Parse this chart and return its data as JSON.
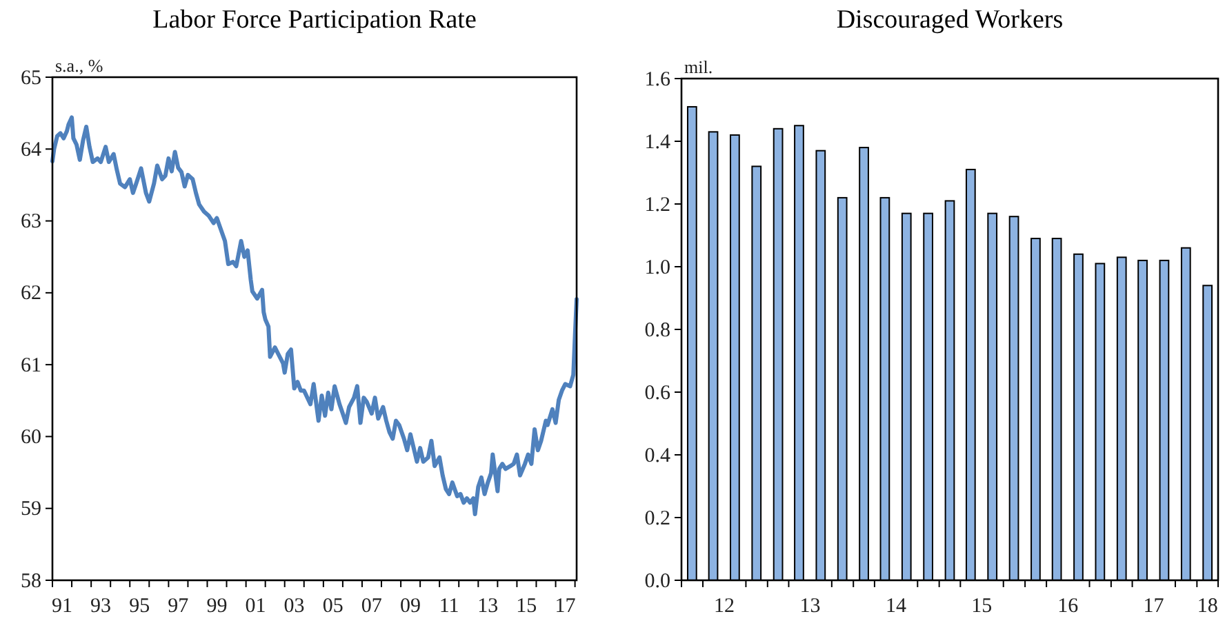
{
  "chart_data": [
    {
      "type": "line",
      "title": "Labor Force Participation  Rate",
      "ylabel": "s.a., %",
      "xlim": [
        "1991-01",
        "2018-02"
      ],
      "ylim": [
        58,
        65
      ],
      "yticks": [
        58,
        59,
        60,
        61,
        62,
        63,
        64,
        65
      ],
      "xticks": [
        {
          "value": "1991-01",
          "label": null
        },
        {
          "value": "1991-07",
          "label": "91"
        },
        {
          "value": "1992-01",
          "label": null
        },
        {
          "value": "1993-01",
          "label": null
        },
        {
          "value": "1993-07",
          "label": "93"
        },
        {
          "value": "1994-01",
          "label": null
        },
        {
          "value": "1995-01",
          "label": null
        },
        {
          "value": "1995-07",
          "label": "95"
        },
        {
          "value": "1996-01",
          "label": null
        },
        {
          "value": "1997-01",
          "label": null
        },
        {
          "value": "1997-07",
          "label": "97"
        },
        {
          "value": "1998-01",
          "label": null
        },
        {
          "value": "1999-01",
          "label": null
        },
        {
          "value": "1999-07",
          "label": "99"
        },
        {
          "value": "2000-01",
          "label": null
        },
        {
          "value": "2001-01",
          "label": null
        },
        {
          "value": "2001-07",
          "label": "01"
        },
        {
          "value": "2002-01",
          "label": null
        },
        {
          "value": "2003-01",
          "label": null
        },
        {
          "value": "2003-07",
          "label": "03"
        },
        {
          "value": "2004-01",
          "label": null
        },
        {
          "value": "2005-01",
          "label": null
        },
        {
          "value": "2005-07",
          "label": "05"
        },
        {
          "value": "2006-01",
          "label": null
        },
        {
          "value": "2007-01",
          "label": null
        },
        {
          "value": "2007-07",
          "label": "07"
        },
        {
          "value": "2008-01",
          "label": null
        },
        {
          "value": "2009-01",
          "label": null
        },
        {
          "value": "2009-07",
          "label": "09"
        },
        {
          "value": "2010-01",
          "label": null
        },
        {
          "value": "2011-01",
          "label": null
        },
        {
          "value": "2011-07",
          "label": "11"
        },
        {
          "value": "2012-01",
          "label": null
        },
        {
          "value": "2013-01",
          "label": null
        },
        {
          "value": "2013-07",
          "label": "13"
        },
        {
          "value": "2014-01",
          "label": null
        },
        {
          "value": "2015-01",
          "label": null
        },
        {
          "value": "2015-07",
          "label": "15"
        },
        {
          "value": "2016-01",
          "label": null
        },
        {
          "value": "2017-01",
          "label": null
        },
        {
          "value": "2017-07",
          "label": "17"
        },
        {
          "value": "2018-01",
          "label": null
        }
      ],
      "series": [
        {
          "color": "#4f81bd",
          "x": [
            "1991-01",
            "1991-02",
            "1991-04",
            "1991-06",
            "1991-08",
            "1991-10",
            "1991-11",
            "1992-01",
            "1992-02",
            "1992-04",
            "1992-06",
            "1992-08",
            "1992-10",
            "1992-12",
            "1993-02",
            "1993-05",
            "1993-07",
            "1993-10",
            "1993-12",
            "1994-03",
            "1994-05",
            "1994-07",
            "1994-10",
            "1995-01",
            "1995-03",
            "1995-05",
            "1995-08",
            "1995-11",
            "1996-01",
            "1996-04",
            "1996-06",
            "1996-09",
            "1996-11",
            "1997-01",
            "1997-03",
            "1997-05",
            "1997-07",
            "1997-09",
            "1997-11",
            "1998-01",
            "1998-04",
            "1998-06",
            "1998-08",
            "1998-11",
            "1999-02",
            "1999-05",
            "1999-07",
            "1999-09",
            "1999-12",
            "2000-02",
            "2000-05",
            "2000-07",
            "2000-10",
            "2000-12",
            "2001-02",
            "2001-04",
            "2001-05",
            "2001-08",
            "2001-11",
            "2001-12",
            "2002-01",
            "2002-03",
            "2002-04",
            "2002-07",
            "2002-09",
            "2002-12",
            "2003-01",
            "2003-03",
            "2003-05",
            "2003-07",
            "2003-09",
            "2003-11",
            "2004-01",
            "2004-05",
            "2004-07",
            "2004-10",
            "2004-12",
            "2005-02",
            "2005-04",
            "2005-06",
            "2005-08",
            "2005-11",
            "2006-01",
            "2006-03",
            "2006-05",
            "2006-08",
            "2006-10",
            "2006-12",
            "2007-02",
            "2007-04",
            "2007-07",
            "2007-09",
            "2007-11",
            "2008-02",
            "2008-04",
            "2008-06",
            "2008-08",
            "2008-10",
            "2008-12",
            "2009-03",
            "2009-05",
            "2009-07",
            "2009-09",
            "2009-11",
            "2010-01",
            "2010-03",
            "2010-06",
            "2010-08",
            "2010-10",
            "2011-01",
            "2011-03",
            "2011-05",
            "2011-07",
            "2011-09",
            "2011-12",
            "2012-02",
            "2012-04",
            "2012-06",
            "2012-08",
            "2012-10",
            "2012-11",
            "2013-01",
            "2013-03",
            "2013-05",
            "2013-07",
            "2013-09",
            "2013-10",
            "2014-01",
            "2014-02",
            "2014-04",
            "2014-06",
            "2014-09",
            "2014-11",
            "2015-01",
            "2015-03",
            "2015-06",
            "2015-08",
            "2015-10",
            "2015-12",
            "2016-02",
            "2016-04",
            "2016-07",
            "2016-08",
            "2016-11",
            "2017-01",
            "2017-03",
            "2017-05",
            "2017-07",
            "2017-10",
            "2017-12",
            "2018-01",
            "2018-02"
          ],
          "values": [
            63.83,
            64.0,
            64.18,
            64.22,
            64.15,
            64.25,
            64.34,
            64.44,
            64.15,
            64.06,
            63.85,
            64.12,
            64.31,
            64.03,
            63.82,
            63.87,
            63.82,
            64.03,
            63.82,
            63.93,
            63.71,
            63.52,
            63.47,
            63.58,
            63.39,
            63.52,
            63.73,
            63.39,
            63.27,
            63.52,
            63.77,
            63.58,
            63.63,
            63.87,
            63.69,
            63.96,
            63.74,
            63.68,
            63.48,
            63.64,
            63.58,
            63.39,
            63.23,
            63.13,
            63.07,
            62.97,
            63.04,
            62.91,
            62.72,
            62.4,
            62.43,
            62.37,
            62.72,
            62.5,
            62.59,
            62.18,
            62.02,
            61.92,
            62.04,
            61.73,
            61.63,
            61.53,
            61.11,
            61.24,
            61.15,
            61.02,
            60.89,
            61.15,
            61.21,
            60.67,
            60.76,
            60.64,
            60.64,
            60.45,
            60.73,
            60.22,
            60.57,
            60.29,
            60.61,
            60.38,
            60.7,
            60.45,
            60.32,
            60.19,
            60.41,
            60.54,
            60.7,
            60.19,
            60.54,
            60.48,
            60.32,
            60.54,
            60.25,
            60.41,
            60.22,
            60.06,
            59.97,
            60.22,
            60.16,
            59.97,
            59.81,
            60.03,
            59.84,
            59.65,
            59.84,
            59.65,
            59.71,
            59.94,
            59.59,
            59.71,
            59.46,
            59.27,
            59.2,
            59.36,
            59.17,
            59.2,
            59.08,
            59.14,
            59.08,
            59.14,
            58.92,
            59.3,
            59.43,
            59.2,
            59.36,
            59.49,
            59.75,
            59.24,
            59.55,
            59.62,
            59.55,
            59.59,
            59.62,
            59.75,
            59.46,
            59.62,
            59.75,
            59.62,
            60.1,
            59.81,
            59.94,
            60.22,
            60.16,
            60.38,
            60.19,
            60.51,
            60.64,
            60.73,
            60.7,
            60.86,
            61.4,
            61.91
          ]
        }
      ]
    },
    {
      "type": "bar",
      "title": "Discouraged Workers",
      "ylabel": "mil.",
      "xlim": [
        "2012-01-01",
        "2018-04-01"
      ],
      "ylim": [
        0,
        1.6
      ],
      "yticks": [
        {
          "value": 0,
          "label": "0.0"
        },
        0.2,
        0.4,
        0.6,
        0.8,
        {
          "value": 1,
          "label": "1.0"
        },
        1.2,
        1.4,
        1.6
      ],
      "xticks": [
        {
          "value": "2012-01-01",
          "label": null
        },
        {
          "value": "2012-04-01",
          "label": null
        },
        {
          "value": "2012-07-01",
          "label": "12"
        },
        {
          "value": "2012-10-01",
          "label": null
        },
        {
          "value": "2013-01-01",
          "label": null
        },
        {
          "value": "2013-04-01",
          "label": null
        },
        {
          "value": "2013-07-01",
          "label": "13"
        },
        {
          "value": "2013-10-01",
          "label": null
        },
        {
          "value": "2014-01-01",
          "label": null
        },
        {
          "value": "2014-04-01",
          "label": null
        },
        {
          "value": "2014-07-01",
          "label": "14"
        },
        {
          "value": "2014-10-01",
          "label": null
        },
        {
          "value": "2015-01-01",
          "label": null
        },
        {
          "value": "2015-04-01",
          "label": null
        },
        {
          "value": "2015-07-01",
          "label": "15"
        },
        {
          "value": "2015-10-01",
          "label": null
        },
        {
          "value": "2016-01-01",
          "label": null
        },
        {
          "value": "2016-04-01",
          "label": null
        },
        {
          "value": "2016-07-01",
          "label": "16"
        },
        {
          "value": "2016-10-01",
          "label": null
        },
        {
          "value": "2017-01-01",
          "label": null
        },
        {
          "value": "2017-04-01",
          "label": null
        },
        {
          "value": "2017-07-01",
          "label": "17"
        },
        {
          "value": "2017-10-01",
          "label": null
        },
        {
          "value": "2018-01-01",
          "label": null
        },
        {
          "value": "2018-02-15",
          "label": "18"
        },
        {
          "value": "2018-04-01",
          "label": null
        }
      ],
      "series": [
        {
          "color": "#8db3e2",
          "x": [
            "2012-02-15",
            "2012-05-15",
            "2012-08-15",
            "2012-11-15",
            "2013-02-15",
            "2013-05-15",
            "2013-08-15",
            "2013-11-15",
            "2014-02-15",
            "2014-05-15",
            "2014-08-15",
            "2014-11-15",
            "2015-02-15",
            "2015-05-15",
            "2015-08-15",
            "2015-11-15",
            "2016-02-15",
            "2016-05-15",
            "2016-08-15",
            "2016-11-15",
            "2017-02-15",
            "2017-05-15",
            "2017-08-15",
            "2017-11-15",
            "2018-02-15"
          ],
          "values": [
            1.51,
            1.43,
            1.42,
            1.32,
            1.44,
            1.45,
            1.37,
            1.22,
            1.38,
            1.22,
            1.17,
            1.17,
            1.21,
            1.31,
            1.17,
            1.16,
            1.09,
            1.09,
            1.04,
            1.01,
            1.03,
            1.02,
            1.02,
            1.06,
            0.94
          ]
        }
      ]
    }
  ]
}
